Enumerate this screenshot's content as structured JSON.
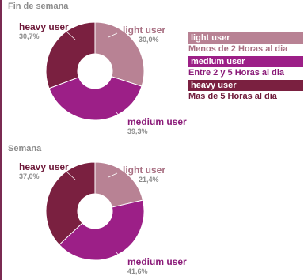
{
  "colors": {
    "light": "#b88294",
    "medium": "#9c1f87",
    "heavy": "#7a2040",
    "title": "#8c8c8c",
    "light_text": "#a86f82",
    "medium_text": "#8a1a78",
    "heavy_text": "#6e1a3a"
  },
  "chart_data": [
    {
      "type": "pie",
      "title": "Fin de semana",
      "series": [
        {
          "name": "light user",
          "value": 30.0,
          "label": "30,0%"
        },
        {
          "name": "medium user",
          "value": 39.3,
          "label": "39,3%"
        },
        {
          "name": "heavy user",
          "value": 30.7,
          "label": "30,7%"
        }
      ]
    },
    {
      "type": "pie",
      "title": "Semana",
      "series": [
        {
          "name": "light user",
          "value": 21.4,
          "label": "21,4%"
        },
        {
          "name": "medium user",
          "value": 41.6,
          "label": "41,6%"
        },
        {
          "name": "heavy user",
          "value": 37.0,
          "label": "37,0%"
        }
      ]
    }
  ],
  "legend": [
    {
      "key": "light",
      "name": "light user",
      "desc": "Menos de 2 Horas al dia"
    },
    {
      "key": "medium",
      "name": "medium user",
      "desc": "Entre 2 y 5 Horas al dia"
    },
    {
      "key": "heavy",
      "name": "heavy user",
      "desc": "Mas de 5 Horas al dia"
    }
  ]
}
